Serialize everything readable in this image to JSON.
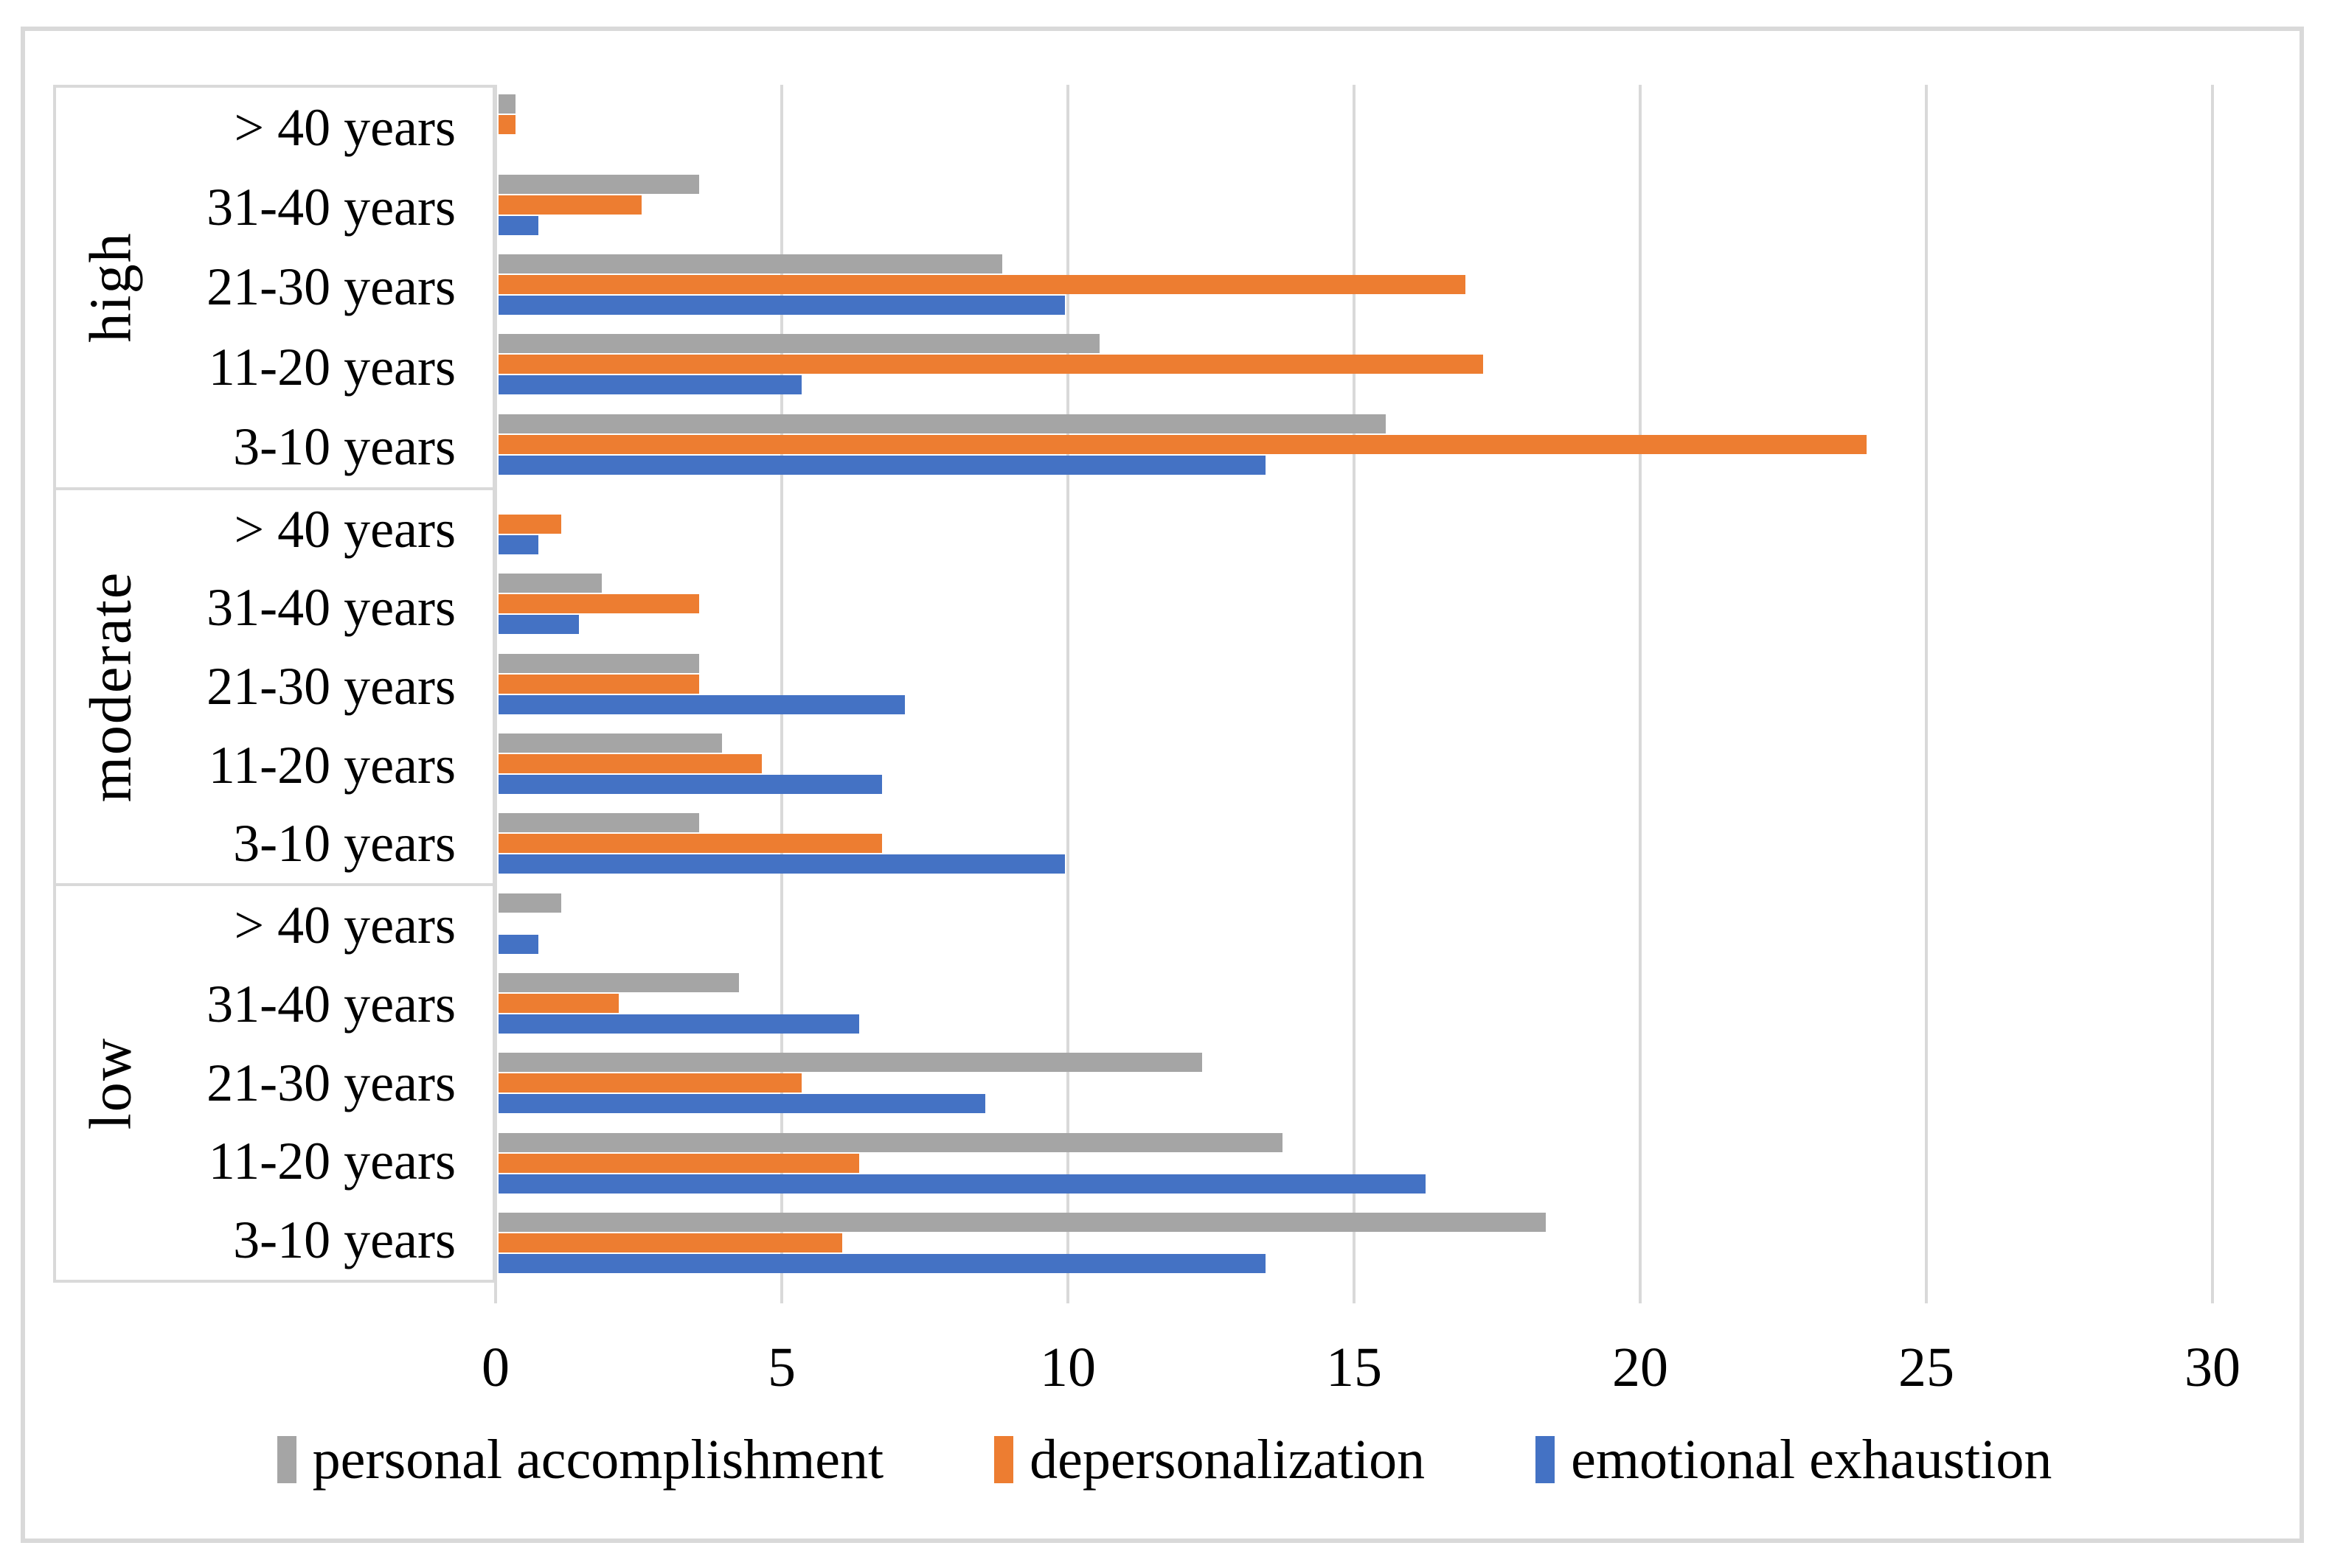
{
  "figure": {
    "background": "#FFFFFF",
    "frame_color": "#D9D9D9"
  },
  "chart_data": {
    "type": "bar",
    "orientation": "horizontal-grouped",
    "title": "",
    "xlabel": "",
    "ylabel": "",
    "x_axis": {
      "min": 0,
      "max": 30,
      "tick_step": 5,
      "tick_labels": [
        "0",
        "5",
        "10",
        "15",
        "20",
        "25",
        "30"
      ],
      "gridlines": true,
      "gridline_color": "#D9D9D9"
    },
    "series": [
      {
        "name": "personal accomplishment",
        "color": "#A5A5A5"
      },
      {
        "name": "depersonalization",
        "color": "#ED7D31"
      },
      {
        "name": "emotional exhaustion",
        "color": "#4472C4"
      }
    ],
    "legend": {
      "position": "bottom",
      "items": [
        "personal accomplishment",
        "depersonalization",
        "emotional exhaustion"
      ]
    },
    "groups": [
      {
        "label": "high",
        "rows": [
          {
            "category": "> 40 years",
            "values": [
              0.3,
              0.3,
              0
            ]
          },
          {
            "category": "31-40 years",
            "values": [
              3.5,
              2.5,
              0.7
            ]
          },
          {
            "category": "21-30 years",
            "values": [
              8.8,
              16.9,
              9.9
            ]
          },
          {
            "category": "11-20 years",
            "values": [
              10.5,
              17.2,
              5.3
            ]
          },
          {
            "category": "3-10 years",
            "values": [
              15.5,
              23.9,
              13.4
            ]
          }
        ]
      },
      {
        "label": "moderate",
        "rows": [
          {
            "category": "> 40 years",
            "values": [
              0,
              1.1,
              0.7
            ]
          },
          {
            "category": "31-40 years",
            "values": [
              1.8,
              3.5,
              1.4
            ]
          },
          {
            "category": "21-30 years",
            "values": [
              3.5,
              3.5,
              7.1
            ]
          },
          {
            "category": "11-20 years",
            "values": [
              3.9,
              4.6,
              6.7
            ]
          },
          {
            "category": "3-10 years",
            "values": [
              3.5,
              6.7,
              9.9
            ]
          }
        ]
      },
      {
        "label": "low",
        "rows": [
          {
            "category": "> 40 years",
            "values": [
              1.1,
              0,
              0.7
            ]
          },
          {
            "category": "31-40 years",
            "values": [
              4.2,
              2.1,
              6.3
            ]
          },
          {
            "category": "21-30 years",
            "values": [
              12.3,
              5.3,
              8.5
            ]
          },
          {
            "category": "11-20 years",
            "values": [
              13.7,
              6.3,
              16.2
            ]
          },
          {
            "category": "3-10 years",
            "values": [
              18.3,
              6.0,
              13.4
            ]
          }
        ]
      }
    ]
  }
}
